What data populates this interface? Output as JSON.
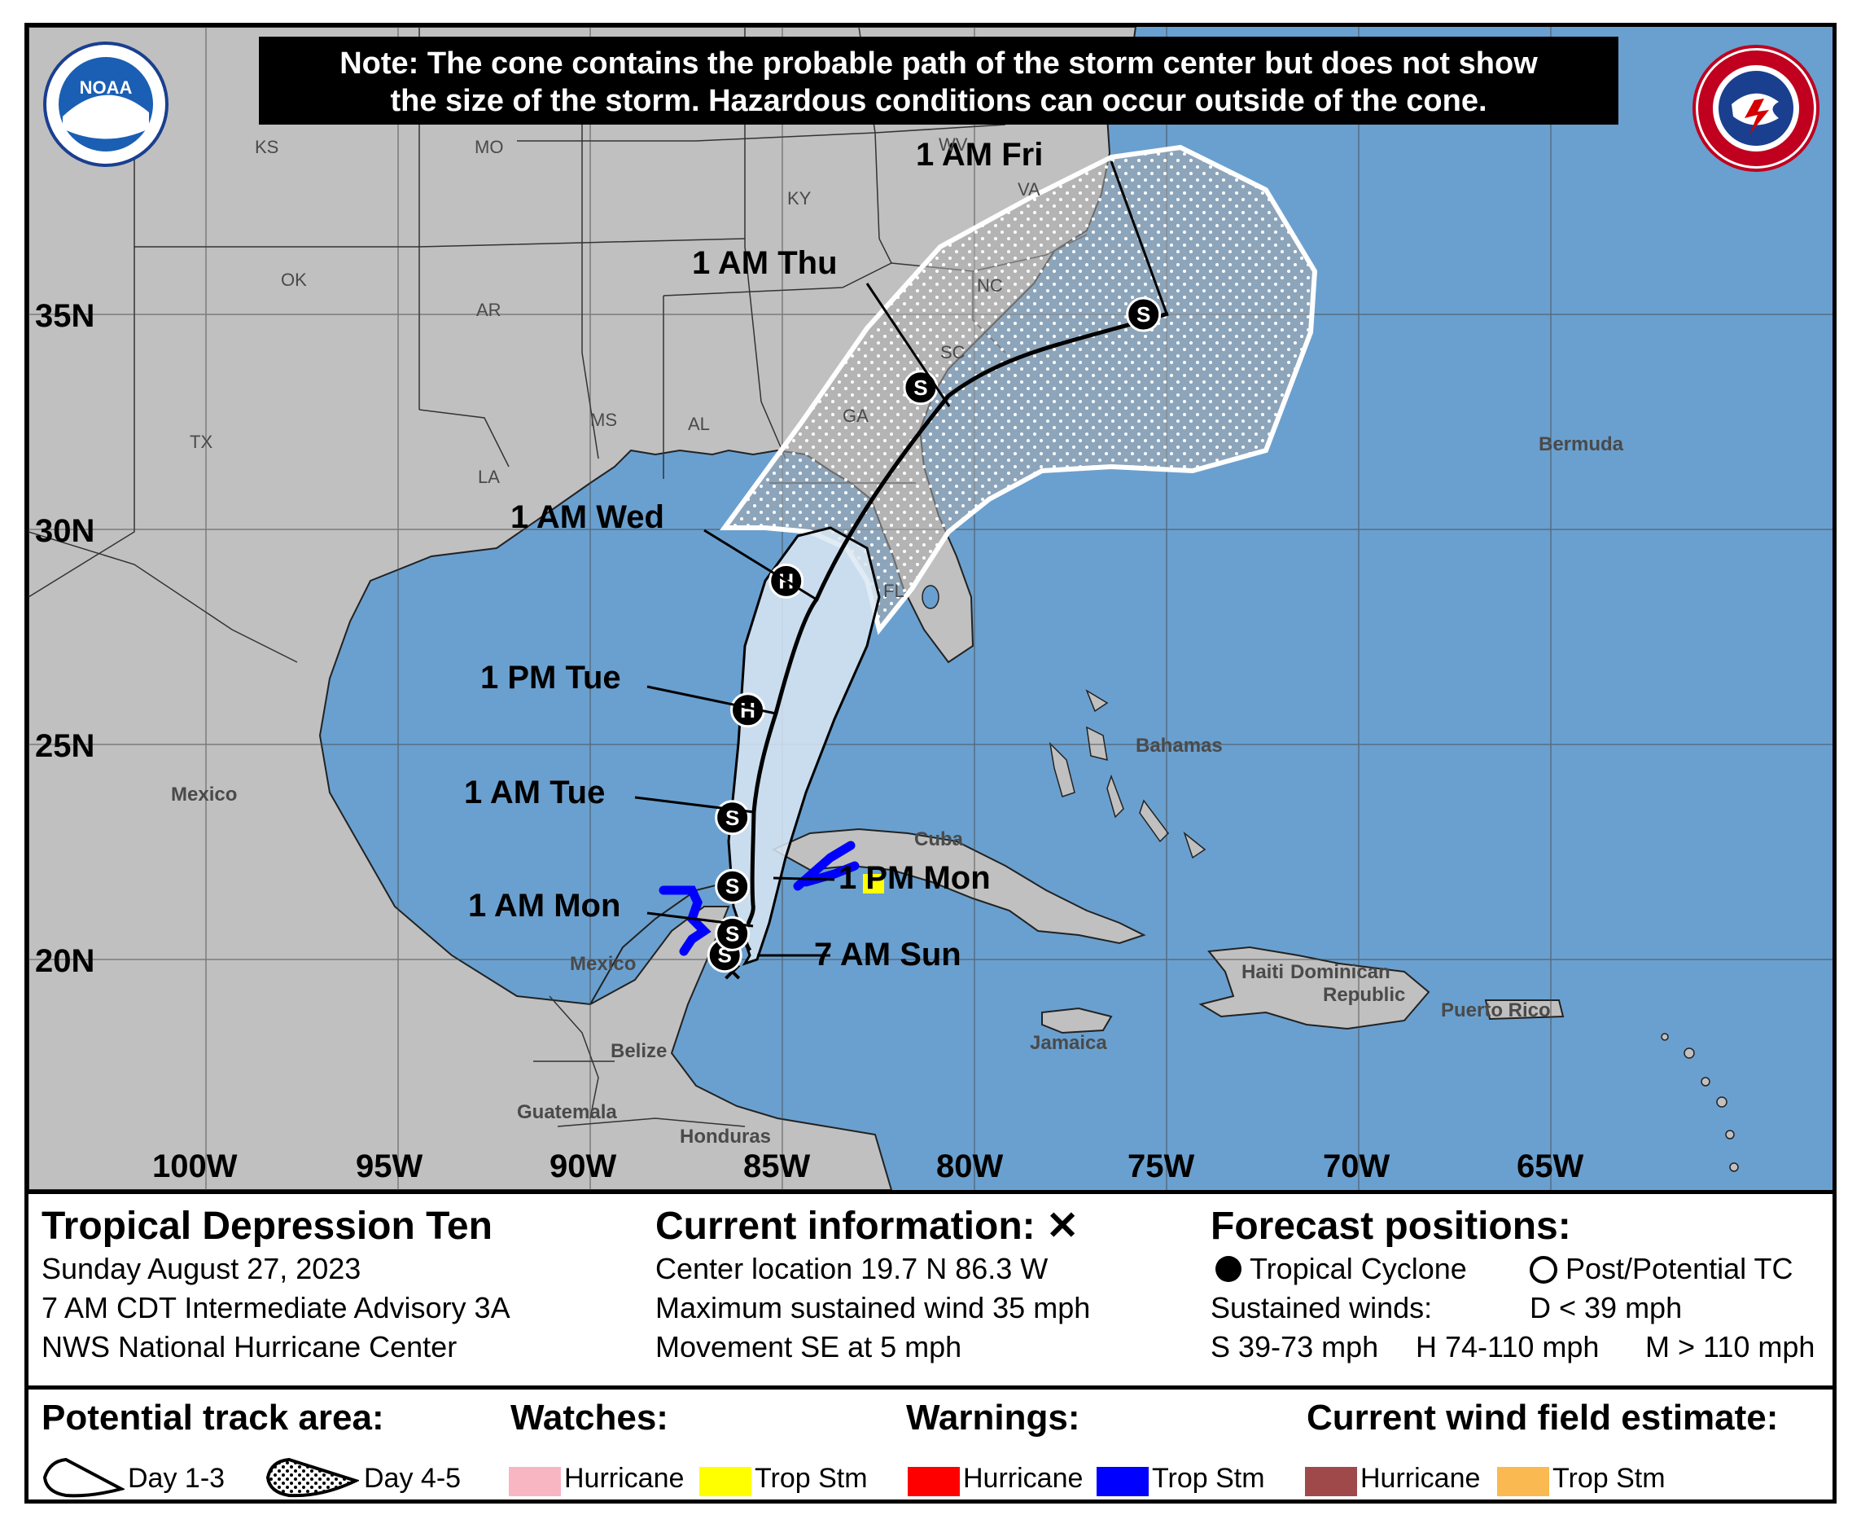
{
  "note": {
    "line1": "Note: The cone contains the probable path of the storm center but does not show",
    "line2": "the size of the storm. Hazardous conditions can occur outside of the cone."
  },
  "logos": {
    "left": "noaa-logo",
    "right": "national-weather-service-logo"
  },
  "map": {
    "lat_labels": [
      "35N",
      "30N",
      "25N",
      "20N"
    ],
    "lon_labels": [
      "100W",
      "95W",
      "90W",
      "85W",
      "80W",
      "75W",
      "70W",
      "65W"
    ],
    "states": [
      "KS",
      "MO",
      "KY",
      "WV",
      "VA",
      "OK",
      "AR",
      "NC",
      "SC",
      "TX",
      "MS",
      "AL",
      "GA",
      "LA",
      "FL"
    ],
    "places": [
      "Bermuda",
      "Mexico",
      "Bahamas",
      "Cuba",
      "Mexico",
      "Haiti",
      "Dominican Republic",
      "Puerto Rico",
      "Jamaica",
      "Belize",
      "Guatemala",
      "Honduras"
    ],
    "track_points": [
      {
        "label": "7 AM Sun",
        "lat": 19.7,
        "lon": -86.3,
        "marker": "X"
      },
      {
        "label": "",
        "lat": 20.1,
        "lon": -86.5,
        "marker": "S"
      },
      {
        "label": "1 AM Mon",
        "lat": 20.6,
        "lon": -86.3,
        "marker": "S"
      },
      {
        "label": "1 PM Mon",
        "lat": 21.7,
        "lon": -86.3,
        "marker": "S"
      },
      {
        "label": "1 AM Tue",
        "lat": 23.3,
        "lon": -86.3,
        "marker": "S"
      },
      {
        "label": "1 PM Tue",
        "lat": 25.8,
        "lon": -85.9,
        "marker": "H"
      },
      {
        "label": "1 AM Wed",
        "lat": 28.8,
        "lon": -84.9,
        "marker": "H"
      },
      {
        "label": "1 AM Thu",
        "lat": 33.3,
        "lon": -81.4,
        "marker": "S"
      },
      {
        "label": "1 AM Fri",
        "lat": 35.0,
        "lon": -75.6,
        "marker": "S"
      }
    ]
  },
  "title": {
    "name": "Tropical Depression Ten",
    "date": "Sunday August 27, 2023",
    "advisory": "7 AM CDT Intermediate Advisory 3A",
    "center": "NWS National Hurricane Center"
  },
  "current": {
    "heading": "Current information: ✕",
    "location": "Center location 19.7 N 86.3 W",
    "wind": "Maximum sustained wind 35 mph",
    "movement": "Movement SE at 5 mph"
  },
  "forecast": {
    "heading": "Forecast positions:",
    "tc": "Tropical Cyclone",
    "post_tc": "Post/Potential TC",
    "sustained": "Sustained winds:",
    "d": "D < 39 mph",
    "s": "S 39-73 mph",
    "h": "H 74-110 mph",
    "m": "M > 110 mph"
  },
  "legend": {
    "track_area": "Potential track area:",
    "day13": "Day 1-3",
    "day45": "Day 4-5",
    "watches": "Watches:",
    "warnings": "Warnings:",
    "wind_field": "Current wind field estimate:",
    "hurricane": "Hurricane",
    "trop_stm": "Trop Stm",
    "colors": {
      "watch_hurricane": "#f7b6c2",
      "watch_trop": "#ffff00",
      "warn_hurricane": "#ff0000",
      "warn_trop": "#0000ff",
      "wind_hurricane": "#a0494a",
      "wind_trop": "#fbb951",
      "ocean": "#6aa0cf",
      "land": "#c0c0c0"
    }
  }
}
